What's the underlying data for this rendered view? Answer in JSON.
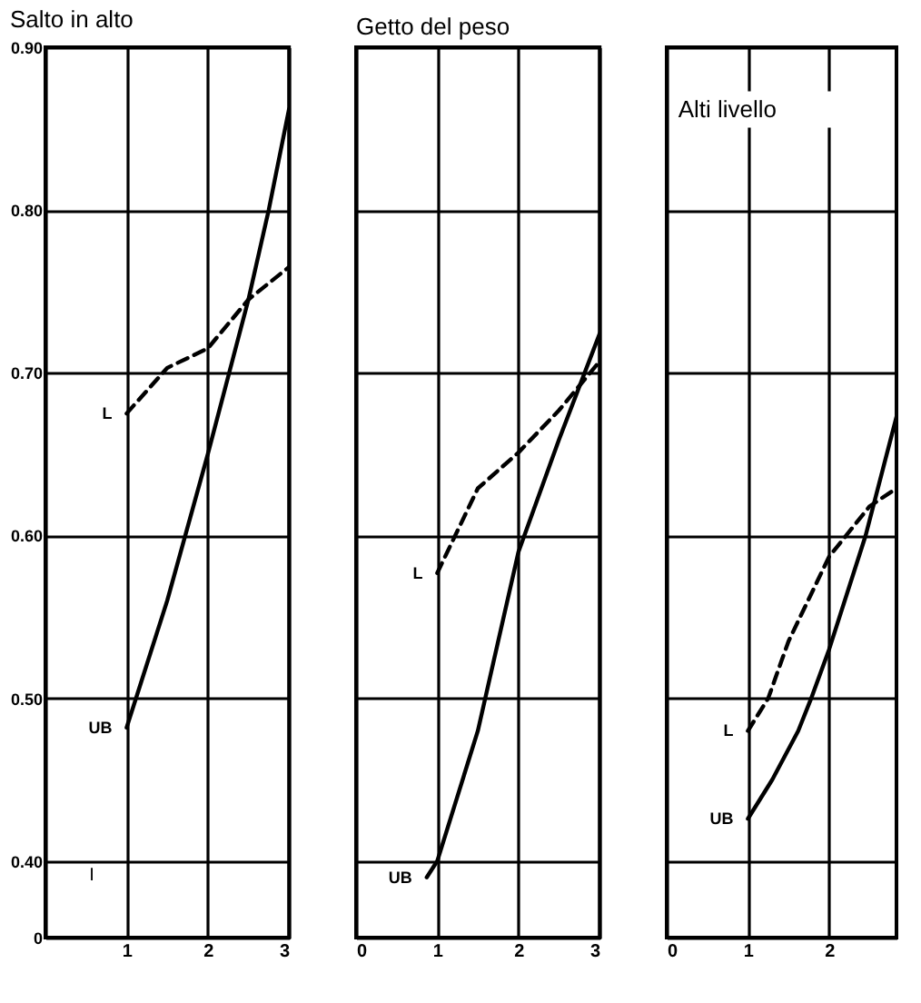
{
  "chart_data": [
    {
      "type": "line",
      "title": "Salto in alto",
      "annotations": [
        "I"
      ],
      "ylim": [
        0.353,
        0.9
      ],
      "yticks": [
        {
          "value": 0.353,
          "label": "0"
        },
        {
          "value": 0.4,
          "label": "0.40"
        },
        {
          "value": 0.5,
          "label": "0.50"
        },
        {
          "value": 0.6,
          "label": "0.60"
        },
        {
          "value": 0.7,
          "label": "0.70"
        },
        {
          "value": 0.8,
          "label": "0.80"
        },
        {
          "value": 0.9,
          "label": "0.90"
        }
      ],
      "xlim": [
        0,
        3
      ],
      "xticks": [
        {
          "value": 0,
          "label": null
        },
        1,
        2,
        3
      ],
      "grid": true,
      "series": [
        {
          "name": "L",
          "color": "#000000",
          "line_style": "dashed",
          "x": [
            1,
            1.5,
            2,
            2.5,
            3
          ],
          "values": [
            0.675,
            0.703,
            0.715,
            0.745,
            0.765
          ]
        },
        {
          "name": "UB",
          "color": "#000000",
          "line_style": "solid",
          "x": [
            1,
            1.5,
            2,
            2.5,
            2.75,
            3
          ],
          "values": [
            0.482,
            0.56,
            0.65,
            0.745,
            0.8,
            0.862
          ]
        }
      ]
    },
    {
      "type": "line",
      "title": "Getto del peso",
      "ylim": [
        0.353,
        0.9
      ],
      "yticks": [
        0.353,
        0.4,
        0.5,
        0.6,
        0.7,
        0.8,
        0.9
      ],
      "xlim": [
        0,
        3
      ],
      "xticks": [
        0,
        1,
        2,
        3
      ],
      "grid": true,
      "tick_labels": "x",
      "series": [
        {
          "name": "L",
          "color": "#000000",
          "line_style": "dashed",
          "x": [
            1,
            1.5,
            2,
            2.5,
            3
          ],
          "values": [
            0.577,
            0.629,
            0.651,
            0.677,
            0.707
          ]
        },
        {
          "name": "UB",
          "color": "#000000",
          "line_style": "solid",
          "x": [
            0.87,
            1,
            1.5,
            2,
            2.5,
            3
          ],
          "values": [
            0.39,
            0.4,
            0.48,
            0.59,
            0.659,
            0.724
          ]
        }
      ]
    },
    {
      "type": "line",
      "annotations": [
        "Alti livello"
      ],
      "ylim": [
        0.353,
        0.9
      ],
      "yticks": [
        0.353,
        0.4,
        0.5,
        0.6,
        0.7,
        0.8,
        0.9
      ],
      "xlim": [
        0,
        2.83
      ],
      "xticks": [
        0,
        1,
        2
      ],
      "grid": true,
      "tick_labels": "x",
      "series": [
        {
          "name": "L",
          "color": "#000000",
          "line_style": "dashed",
          "x": [
            1,
            1.25,
            1.5,
            2,
            2.5,
            2.83
          ],
          "values": [
            0.48,
            0.5,
            0.535,
            0.587,
            0.618,
            0.629
          ]
        },
        {
          "name": "UB",
          "color": "#000000",
          "line_style": "solid",
          "x": [
            1,
            1.3,
            1.62,
            1.78,
            2,
            2.45,
            2.83
          ],
          "values": [
            0.426,
            0.45,
            0.48,
            0.5,
            0.53,
            0.6,
            0.673
          ]
        }
      ]
    }
  ]
}
